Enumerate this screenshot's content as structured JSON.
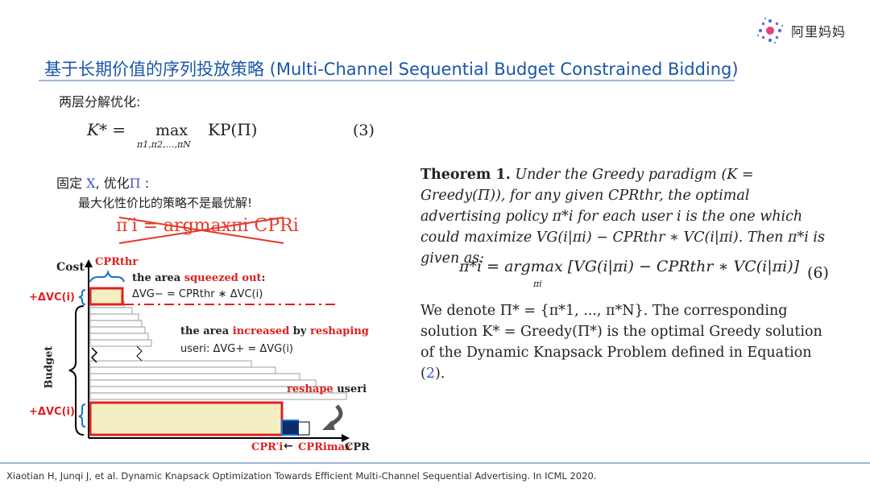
{
  "logo": {
    "text": "阿里妈妈",
    "icon": "alimama-sparkle-logo"
  },
  "title": "基于长期价值的序列投放策略 (Multi-Channel Sequential Budget Constrained Bidding)",
  "left": {
    "subhead": "两层分解优化:",
    "eq3": {
      "lhs": "K* =",
      "max": "max",
      "sub": "π1,π2,…,πN",
      "kp": "KP(Π)",
      "number": "(3)"
    },
    "fix_prefix": "固定 ",
    "fix_var_x": "X",
    "fix_mid": ", 优化",
    "fix_var_pi": "Π",
    "fix_suffix": " :",
    "note": "最大化性价比的策略不是最优解!",
    "struck_formula": "π′i = argmaxπi CPRi"
  },
  "diagram": {
    "y_axis": "Cost",
    "x_axis": "CPR",
    "cpr_thr": "CPRthr",
    "delta_vc": "+ΔVC(i)",
    "budget": "Budget",
    "squeezed_prefix": "the area ",
    "squeezed_red": "squeezed out",
    "squeezed_suffix": ":",
    "squeezed_eq": "ΔVG− = CPRthr ∗ ΔVC(i)",
    "increased_prefix": "the area ",
    "increased_red": "increased",
    "increased_mid": " by ",
    "increased_red2": "reshaping",
    "increased_eq": "useri: ΔVG+ = ΔVG(i)",
    "reshape_red": "reshape",
    "reshape_rest": " useri",
    "cpr_prime": "CPR′i",
    "arrow": "←",
    "cpr_max": "CPRimax",
    "colors": {
      "red": "#e02020",
      "blue": "#1f6fd0",
      "fill": "#f3efc2",
      "darkblue": "#0b2b6b"
    }
  },
  "theorem": {
    "label": "Theorem 1.",
    "line1": "Under the Greedy paradigm (K = Greedy(Π)), for any given CPRthr, the optimal advertising policy π*i for each user i is the one which could maximize VG(i|πi) − CPRthr ∗ VC(i|πi). Then π*i is given as:",
    "eq6": "π*i = argmax [VG(i|πi) − CPRthr ∗ VC(i|πi)]",
    "eq6_sub": "πi",
    "eq6_number": "(6)",
    "line2_it": "We denote Π* = {π*1, ..., π*N}. The corresponding solution K* = Greedy(Π*) is the optimal Greedy solution of the",
    "line2_normal": "Dynamic Knapsack Problem",
    "line2_it2": " defined in Equation (",
    "line2_ref": "2",
    "line2_end": ")."
  },
  "footer": "Xiaotian H, Junqi J, et al. Dynamic Knapsack Optimization Towards Efficient Multi-Channel Sequential Advertising. In ICML 2020."
}
